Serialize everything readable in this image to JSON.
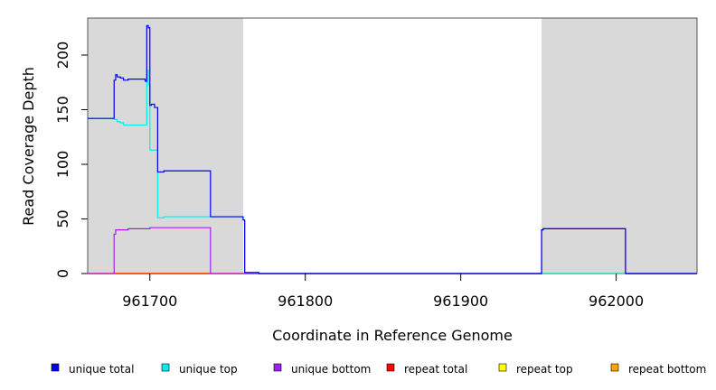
{
  "chart_data": {
    "type": "line",
    "title": "",
    "xlabel": "Coordinate in Reference Genome",
    "ylabel": "Read Coverage Depth",
    "xlim": [
      961660,
      962052
    ],
    "ylim": [
      0,
      230
    ],
    "x_ticks": [
      961700,
      961800,
      961900,
      962000
    ],
    "y_ticks": [
      0,
      50,
      100,
      150,
      200
    ],
    "x_tick_labels": [
      "961700",
      "961800",
      "961900",
      "962000"
    ],
    "y_tick_labels": [
      "0",
      "50",
      "100",
      "150",
      "200"
    ],
    "grid": false,
    "shaded_regions": [
      {
        "x0": 961660,
        "x1": 961760,
        "color": "#d9d9d9"
      },
      {
        "x0": 961952,
        "x1": 962052,
        "color": "#d9d9d9"
      }
    ],
    "series": [
      {
        "name": "unique total",
        "color": "#0000ee",
        "points": [
          [
            961660,
            142
          ],
          [
            961677,
            142
          ],
          [
            961677,
            177
          ],
          [
            961678,
            177
          ],
          [
            961678,
            182
          ],
          [
            961679,
            182
          ],
          [
            961679,
            180
          ],
          [
            961681,
            180
          ],
          [
            961681,
            179
          ],
          [
            961683,
            179
          ],
          [
            961683,
            177
          ],
          [
            961686,
            177
          ],
          [
            961686,
            178
          ],
          [
            961697,
            178
          ],
          [
            961697,
            176
          ],
          [
            961698,
            176
          ],
          [
            961698,
            227
          ],
          [
            961699,
            227
          ],
          [
            961699,
            225
          ],
          [
            961700,
            225
          ],
          [
            961700,
            154
          ],
          [
            961701,
            154
          ],
          [
            961701,
            155
          ],
          [
            961703,
            155
          ],
          [
            961703,
            152
          ],
          [
            961705,
            152
          ],
          [
            961705,
            93
          ],
          [
            961709,
            93
          ],
          [
            961709,
            94
          ],
          [
            961739,
            94
          ],
          [
            961739,
            52
          ],
          [
            961760,
            52
          ],
          [
            961760,
            49
          ],
          [
            961761,
            49
          ],
          [
            961761,
            1
          ],
          [
            961770,
            1
          ],
          [
            961770,
            0
          ],
          [
            961952,
            0
          ],
          [
            961952,
            40
          ],
          [
            961953,
            40
          ],
          [
            961953,
            41
          ],
          [
            962006,
            41
          ],
          [
            962006,
            0
          ],
          [
            962052,
            0
          ]
        ]
      },
      {
        "name": "unique top",
        "color": "#00eeee",
        "points": [
          [
            961660,
            142
          ],
          [
            961677,
            142
          ],
          [
            961677,
            141
          ],
          [
            961679,
            141
          ],
          [
            961679,
            139
          ],
          [
            961681,
            139
          ],
          [
            961681,
            138
          ],
          [
            961683,
            138
          ],
          [
            961683,
            136
          ],
          [
            961698,
            136
          ],
          [
            961698,
            186
          ],
          [
            961699,
            186
          ],
          [
            961699,
            173
          ],
          [
            961700,
            173
          ],
          [
            961700,
            113
          ],
          [
            961705,
            113
          ],
          [
            961705,
            51
          ],
          [
            961709,
            51
          ],
          [
            961709,
            52
          ],
          [
            961739,
            52
          ],
          [
            961739,
            52
          ],
          [
            961760,
            52
          ],
          [
            961760,
            49
          ],
          [
            961761,
            49
          ],
          [
            961761,
            1
          ],
          [
            961770,
            1
          ],
          [
            961770,
            0
          ],
          [
            962052,
            0
          ]
        ]
      },
      {
        "name": "unique bottom",
        "color": "#a020f0",
        "points": [
          [
            961660,
            0
          ],
          [
            961677,
            0
          ],
          [
            961677,
            36
          ],
          [
            961678,
            36
          ],
          [
            961678,
            40
          ],
          [
            961686,
            40
          ],
          [
            961686,
            41
          ],
          [
            961700,
            41
          ],
          [
            961700,
            42
          ],
          [
            961739,
            42
          ],
          [
            961739,
            0
          ],
          [
            961952,
            0
          ],
          [
            961952,
            40
          ],
          [
            961953,
            40
          ],
          [
            961953,
            41
          ],
          [
            962006,
            41
          ],
          [
            962006,
            0
          ],
          [
            962052,
            0
          ]
        ]
      },
      {
        "name": "repeat total",
        "color": "#ff0000",
        "points": [
          [
            961660,
            0
          ],
          [
            962052,
            0
          ]
        ]
      },
      {
        "name": "repeat top",
        "color": "#ffff00",
        "points": [
          [
            961660,
            0
          ],
          [
            962052,
            0
          ]
        ]
      },
      {
        "name": "repeat bottom",
        "color": "#ffa500",
        "points": [
          [
            961660,
            0
          ],
          [
            962052,
            0
          ]
        ]
      }
    ],
    "legend": {
      "placement": "bottom",
      "entries": [
        {
          "label": "unique total",
          "color": "#0000ee"
        },
        {
          "label": "unique top",
          "color": "#00eeee"
        },
        {
          "label": "unique bottom",
          "color": "#a020f0"
        },
        {
          "label": "repeat total",
          "color": "#ff0000"
        },
        {
          "label": "repeat top",
          "color": "#ffff00"
        },
        {
          "label": "repeat bottom",
          "color": "#ffa500"
        }
      ]
    }
  }
}
